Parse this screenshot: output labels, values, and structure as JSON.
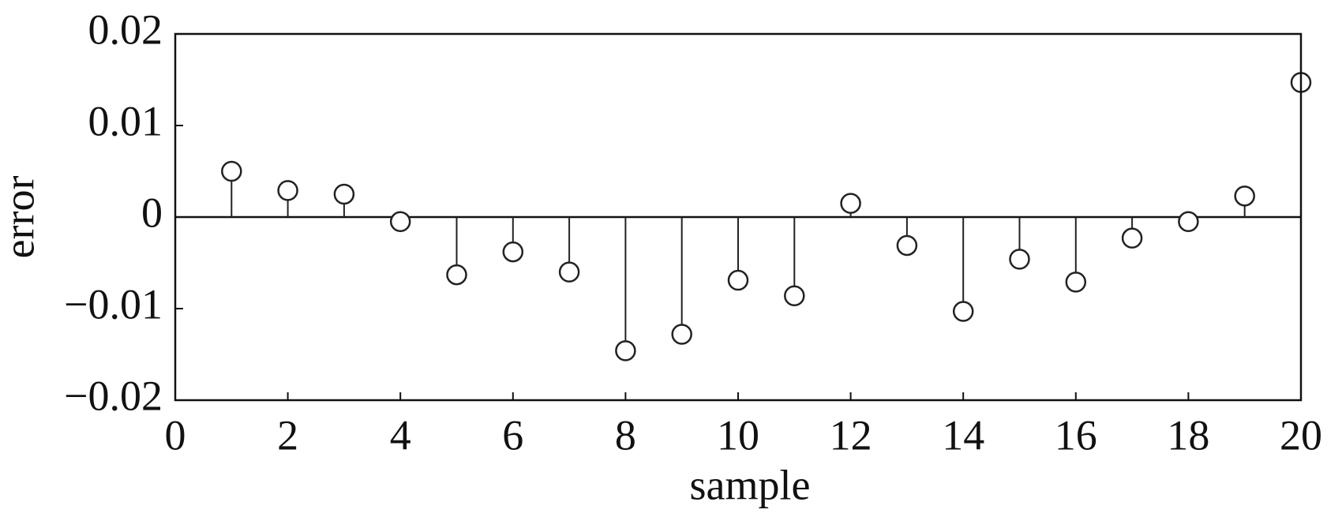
{
  "chart_data": {
    "type": "stem",
    "x_label": "sample",
    "y_label": "error",
    "x": [
      1,
      2,
      3,
      4,
      5,
      6,
      7,
      8,
      9,
      10,
      11,
      12,
      13,
      14,
      15,
      16,
      17,
      18,
      19,
      20
    ],
    "values": [
      0.005,
      0.0029,
      0.0025,
      -0.0005,
      -0.0063,
      -0.0038,
      -0.006,
      -0.0146,
      -0.0128,
      -0.0069,
      -0.0086,
      0.0015,
      -0.0031,
      -0.0103,
      -0.0046,
      -0.0071,
      -0.0023,
      -0.0005,
      0.0023,
      0.0147
    ],
    "color": "#222222",
    "xlim": [
      0,
      20
    ],
    "xticks": [
      0,
      2,
      4,
      6,
      8,
      10,
      12,
      14,
      16,
      18,
      20
    ],
    "ylim": [
      -0.02,
      0.02
    ],
    "yticks": [
      0.02,
      0.01,
      0,
      {
        "value": -0.01,
        "label": "−0.01"
      },
      {
        "value": -0.02,
        "label": "−0.02"
      }
    ]
  }
}
